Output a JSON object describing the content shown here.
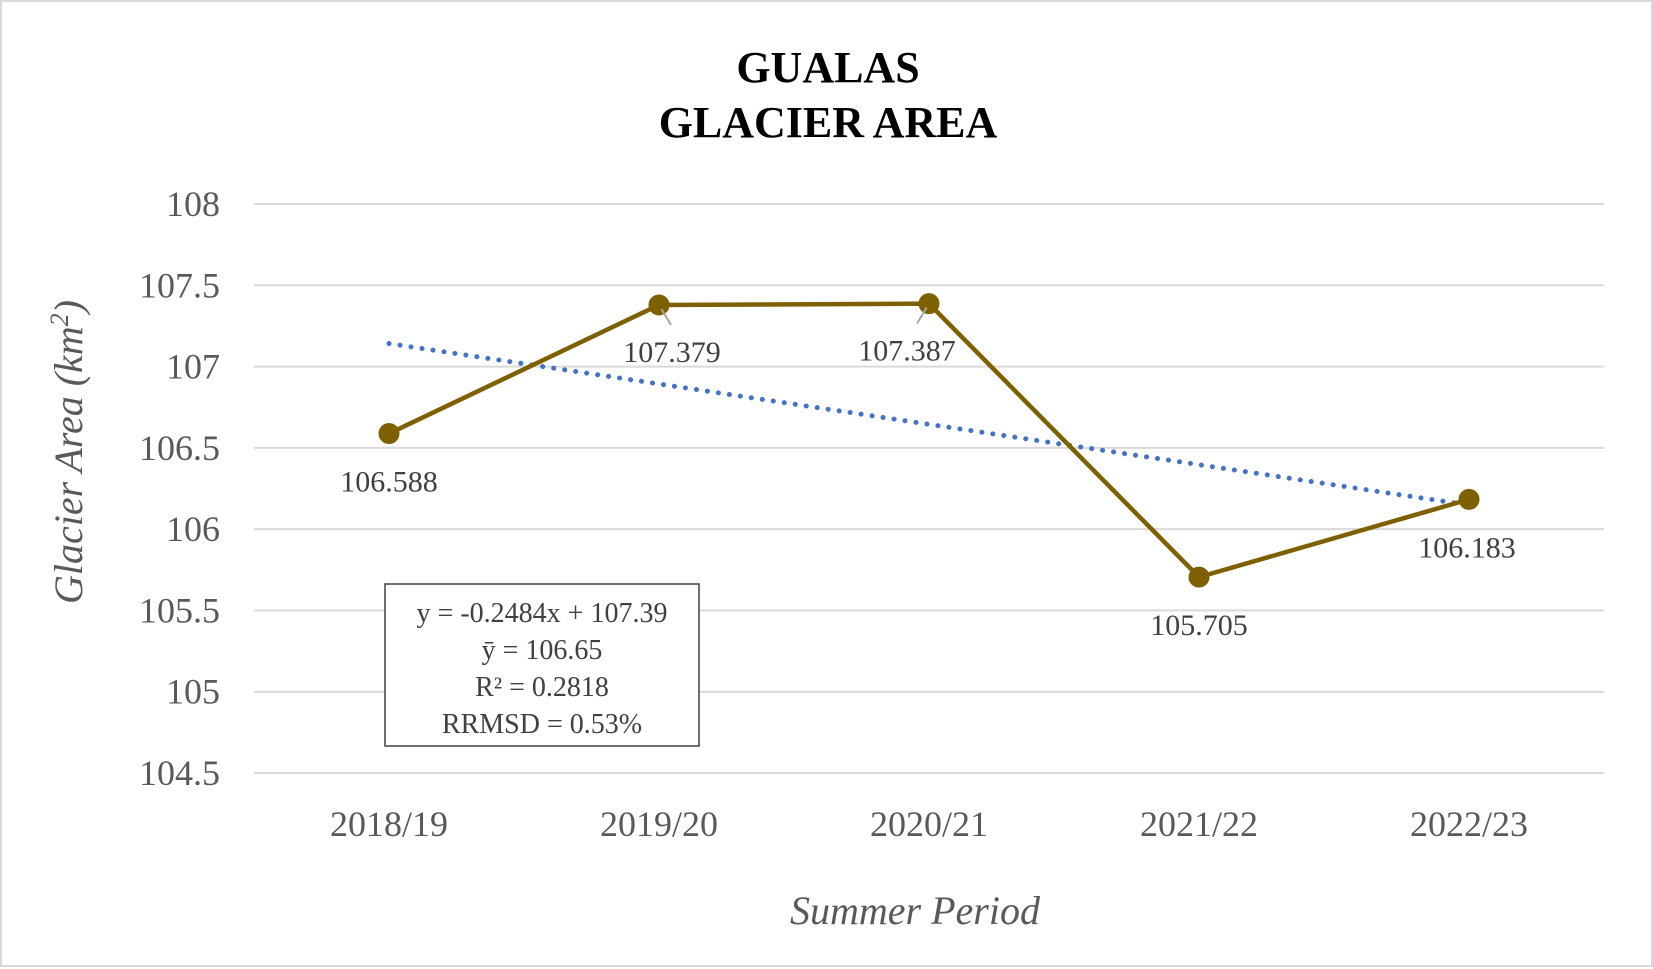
{
  "chart_data": {
    "type": "line",
    "title": [
      "GUALAS",
      "GLACIER AREA"
    ],
    "xlabel": "Summer Period",
    "ylabel_main": "Glacier Area (km",
    "ylabel_sup": "2",
    "ylabel_close": ")",
    "categories": [
      "2018/19",
      "2019/20",
      "2020/21",
      "2021/22",
      "2022/23"
    ],
    "series": [
      {
        "values": [
          106.588,
          107.379,
          107.387,
          105.705,
          106.183
        ],
        "color": "#7f6000"
      }
    ],
    "data_labels": [
      "106.588",
      "107.379",
      "107.387",
      "105.705",
      "106.183"
    ],
    "ylim": [
      104.5,
      108
    ],
    "yticks": [
      104.5,
      105,
      105.5,
      106,
      106.5,
      107,
      107.5,
      108
    ],
    "ytick_labels": [
      "104.5",
      "105",
      "105.5",
      "106",
      "106.5",
      "107",
      "107.5",
      "108"
    ],
    "grid": true,
    "trendline": {
      "type": "linear",
      "slope": -0.2484,
      "intercept": 107.39,
      "color": "#4472c4",
      "style": "dotted"
    },
    "trend_box": [
      "y = -0.2484x + 107.39",
      "ȳ = 106.65",
      "R² = 0.2818",
      "RRMSD = 0.53%"
    ]
  }
}
